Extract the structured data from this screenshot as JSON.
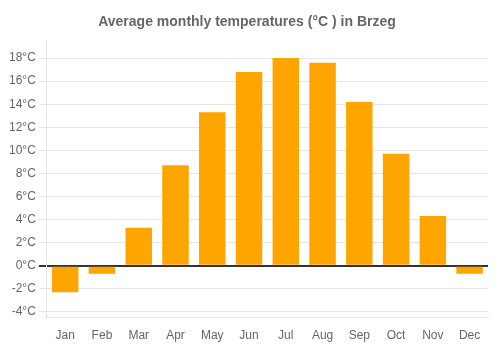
{
  "chart_data": {
    "type": "bar",
    "title": "Average monthly temperatures (°C ) in Brzeg",
    "categories": [
      "Jan",
      "Feb",
      "Mar",
      "Apr",
      "May",
      "Jun",
      "Jul",
      "Aug",
      "Sep",
      "Oct",
      "Nov",
      "Dec"
    ],
    "values": [
      -2.3,
      -0.7,
      3.3,
      8.7,
      13.3,
      16.8,
      18.0,
      17.6,
      14.2,
      9.7,
      4.3,
      -0.7
    ],
    "color": "#FFA500",
    "ylim": [
      -4.5,
      19.5
    ],
    "yticks": [
      {
        "value": -4,
        "label": "-4°C"
      },
      {
        "value": -2,
        "label": "-2°C"
      },
      {
        "value": 0,
        "label": "0°C"
      },
      {
        "value": 2,
        "label": "2°C"
      },
      {
        "value": 4,
        "label": "4°C"
      },
      {
        "value": 6,
        "label": "6°C"
      },
      {
        "value": 8,
        "label": "8°C"
      },
      {
        "value": 10,
        "label": "10°C"
      },
      {
        "value": 12,
        "label": "12°C"
      },
      {
        "value": 14,
        "label": "14°C"
      },
      {
        "value": 16,
        "label": "16°C"
      },
      {
        "value": 18,
        "label": "18°C"
      }
    ],
    "grid": true
  }
}
